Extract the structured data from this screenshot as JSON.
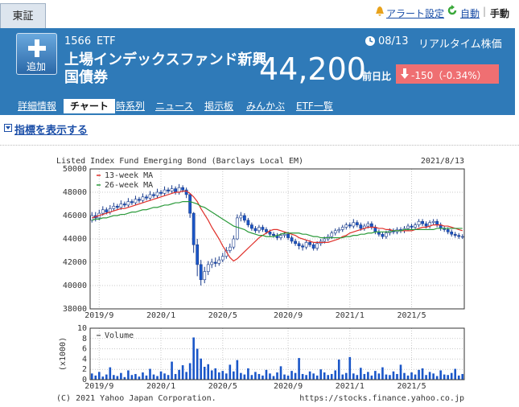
{
  "header": {
    "market": "東証",
    "alert": "アラート設定",
    "auto": "自動",
    "manual": "手動"
  },
  "quote": {
    "add": "追加",
    "code": "1566",
    "kind": "ETF",
    "date": "08/13",
    "realtime": "リアルタイム株価",
    "name": "上場インデックスファンド新興国債券",
    "price": "44,200",
    "change_label": "前日比",
    "change": "-150（-0.34%）"
  },
  "tabs": [
    "詳細情報",
    "チャート",
    "時系列",
    "ニュース",
    "掲示板",
    "みんかぶ",
    "ETF一覧"
  ],
  "indicator_link": "指標を表示する",
  "footer": {
    "copyright": "(C) 2021 Yahoo Japan Corporation.",
    "url": "https://stocks.finance.yahoo.co.jp"
  },
  "chart_data": [
    {
      "type": "candlestick",
      "title": "Listed Index Fund Emerging Bond (Barclays Local EM)",
      "date": "2021/8/13",
      "categories": [
        null,
        null,
        "2019/9",
        null,
        null,
        null,
        null,
        null,
        null,
        null,
        null,
        null,
        null,
        null,
        null,
        null,
        null,
        null,
        null,
        "2020/1",
        null,
        null,
        null,
        null,
        null,
        null,
        null,
        null,
        null,
        null,
        null,
        null,
        null,
        null,
        null,
        null,
        "2020/5",
        null,
        null,
        null,
        null,
        null,
        null,
        null,
        null,
        null,
        null,
        null,
        null,
        null,
        null,
        null,
        null,
        null,
        "2020/9",
        null,
        null,
        null,
        null,
        null,
        null,
        null,
        null,
        null,
        null,
        null,
        null,
        null,
        null,
        null,
        null,
        "2021/1",
        null,
        null,
        null,
        null,
        null,
        null,
        null,
        null,
        null,
        null,
        null,
        null,
        null,
        null,
        null,
        null,
        "2021/5",
        null,
        null,
        null,
        null,
        null,
        null,
        null,
        null,
        null,
        null,
        null,
        null,
        null,
        null
      ],
      "ohlc": [
        [
          45600,
          46300,
          45400,
          46000
        ],
        [
          46000,
          46300,
          45500,
          45800
        ],
        [
          45800,
          46500,
          45600,
          46200
        ],
        [
          46200,
          46800,
          46000,
          46500
        ],
        [
          46500,
          46700,
          46100,
          46300
        ],
        [
          46300,
          46900,
          46100,
          46600
        ],
        [
          46600,
          47100,
          46400,
          46800
        ],
        [
          46800,
          47000,
          46500,
          46700
        ],
        [
          46700,
          47300,
          46500,
          47000
        ],
        [
          47000,
          47200,
          46700,
          46900
        ],
        [
          46900,
          47500,
          46700,
          47200
        ],
        [
          47200,
          47400,
          46900,
          47100
        ],
        [
          47100,
          47700,
          46900,
          47400
        ],
        [
          47400,
          47600,
          47100,
          47300
        ],
        [
          47300,
          47900,
          47100,
          47600
        ],
        [
          47600,
          47800,
          47300,
          47500
        ],
        [
          47500,
          48100,
          47300,
          47800
        ],
        [
          47800,
          48000,
          47500,
          47700
        ],
        [
          47700,
          48300,
          47500,
          48000
        ],
        [
          48000,
          48200,
          47700,
          47900
        ],
        [
          47900,
          48500,
          47700,
          48200
        ],
        [
          48200,
          48400,
          47900,
          48100
        ],
        [
          48100,
          48600,
          47900,
          48300
        ],
        [
          48300,
          48500,
          47800,
          48000
        ],
        [
          48000,
          48700,
          47800,
          48400
        ],
        [
          48400,
          48600,
          48000,
          48200
        ],
        [
          48200,
          48400,
          47500,
          47800
        ],
        [
          47800,
          47900,
          45800,
          46200
        ],
        [
          46200,
          46300,
          42800,
          43500
        ],
        [
          43500,
          44000,
          40800,
          41800
        ],
        [
          41800,
          42200,
          40000,
          40500
        ],
        [
          40500,
          41600,
          40200,
          41200
        ],
        [
          41200,
          42100,
          40900,
          41800
        ],
        [
          41800,
          42300,
          41500,
          42000
        ],
        [
          42000,
          42400,
          41600,
          41900
        ],
        [
          41900,
          42500,
          41700,
          42200
        ],
        [
          42200,
          42800,
          42000,
          42500
        ],
        [
          42500,
          43300,
          42300,
          43000
        ],
        [
          43000,
          43600,
          42800,
          43300
        ],
        [
          43300,
          44300,
          43100,
          44000
        ],
        [
          44000,
          46100,
          43900,
          45800
        ],
        [
          45800,
          46300,
          45500,
          46000
        ],
        [
          46000,
          46200,
          45400,
          45600
        ],
        [
          45600,
          45800,
          45000,
          45200
        ],
        [
          45200,
          45400,
          44700,
          44900
        ],
        [
          44900,
          45100,
          44500,
          44700
        ],
        [
          44700,
          45200,
          44500,
          45000
        ],
        [
          45000,
          45200,
          44600,
          44800
        ],
        [
          44800,
          45000,
          44400,
          44600
        ],
        [
          44600,
          44800,
          44200,
          44400
        ],
        [
          44400,
          44600,
          44100,
          44300
        ],
        [
          44300,
          44500,
          43900,
          44100
        ],
        [
          44100,
          44500,
          43900,
          44300
        ],
        [
          44300,
          44600,
          44100,
          44400
        ],
        [
          44400,
          44600,
          43900,
          44100
        ],
        [
          44100,
          44300,
          43600,
          43800
        ],
        [
          43800,
          44000,
          43400,
          43600
        ],
        [
          43600,
          43800,
          43100,
          43400
        ],
        [
          43400,
          43600,
          43000,
          43300
        ],
        [
          43300,
          43900,
          43100,
          43700
        ],
        [
          43700,
          43900,
          43300,
          43500
        ],
        [
          43500,
          43700,
          43000,
          43200
        ],
        [
          43200,
          43800,
          43000,
          43600
        ],
        [
          43600,
          44000,
          43400,
          43800
        ],
        [
          43800,
          44200,
          43600,
          44000
        ],
        [
          44000,
          44400,
          43800,
          44200
        ],
        [
          44200,
          44700,
          44000,
          44500
        ],
        [
          44500,
          44900,
          44300,
          44700
        ],
        [
          44700,
          45000,
          44500,
          44800
        ],
        [
          44800,
          45200,
          44600,
          45000
        ],
        [
          45000,
          45400,
          44800,
          45200
        ],
        [
          45200,
          45400,
          44900,
          45100
        ],
        [
          45100,
          45700,
          44900,
          45400
        ],
        [
          45400,
          45600,
          45000,
          45200
        ],
        [
          45200,
          45400,
          44700,
          44900
        ],
        [
          44900,
          45300,
          44700,
          45100
        ],
        [
          45100,
          45500,
          44900,
          45300
        ],
        [
          45300,
          45500,
          44800,
          45000
        ],
        [
          45000,
          45200,
          44400,
          44600
        ],
        [
          44600,
          44800,
          44200,
          44400
        ],
        [
          44400,
          44600,
          44000,
          44200
        ],
        [
          44200,
          44700,
          44000,
          44500
        ],
        [
          44500,
          44900,
          44300,
          44700
        ],
        [
          44700,
          44900,
          44400,
          44600
        ],
        [
          44600,
          45000,
          44400,
          44800
        ],
        [
          44800,
          45000,
          44500,
          44700
        ],
        [
          44700,
          45100,
          44500,
          44900
        ],
        [
          44900,
          45300,
          44700,
          45100
        ],
        [
          45100,
          45300,
          44800,
          45000
        ],
        [
          45000,
          45400,
          44800,
          45200
        ],
        [
          45200,
          45700,
          45000,
          45500
        ],
        [
          45500,
          45700,
          45100,
          45300
        ],
        [
          45300,
          45500,
          44900,
          45100
        ],
        [
          45100,
          45600,
          44900,
          45400
        ],
        [
          45400,
          45700,
          45200,
          45500
        ],
        [
          45500,
          45700,
          45000,
          45200
        ],
        [
          45200,
          45400,
          44700,
          44900
        ],
        [
          44900,
          45100,
          44600,
          44800
        ],
        [
          44800,
          45000,
          44400,
          44600
        ],
        [
          44600,
          44800,
          44200,
          44400
        ],
        [
          44400,
          44600,
          44100,
          44300
        ],
        [
          44300,
          44500,
          44000,
          44200
        ],
        [
          44200,
          44400,
          44000,
          44200
        ]
      ],
      "up_color": "#ffffff",
      "down_color": "#1a56c8",
      "candle_stroke": "#1a3c8c",
      "lines": [
        {
          "name": "13-week MA",
          "color": "#e0302a",
          "values": [
            45800,
            45900,
            46000,
            46100,
            46200,
            46300,
            46400,
            46500,
            46600,
            46600,
            46700,
            46800,
            46900,
            47000,
            47100,
            47200,
            47300,
            47400,
            47500,
            47600,
            47700,
            47800,
            47900,
            48000,
            48000,
            48100,
            48100,
            47900,
            47600,
            47200,
            46600,
            46100,
            45600,
            45000,
            44500,
            44000,
            43400,
            42900,
            42400,
            42100,
            42300,
            42600,
            42900,
            43200,
            43500,
            43800,
            44100,
            44300,
            44500,
            44700,
            44800,
            44800,
            44700,
            44600,
            44500,
            44400,
            44300,
            44100,
            44000,
            43900,
            43800,
            43700,
            43700,
            43700,
            43700,
            43700,
            43800,
            43900,
            44000,
            44200,
            44300,
            44500,
            44600,
            44700,
            44800,
            44900,
            45000,
            45000,
            45000,
            44900,
            44900,
            44800,
            44800,
            44700,
            44700,
            44700,
            44700,
            44700,
            44700,
            44800,
            44900,
            45000,
            45000,
            45100,
            45200,
            45200,
            45200,
            45100,
            45100,
            45000,
            44900,
            44800,
            44700
          ]
        },
        {
          "name": "26-week MA",
          "color": "#2a9a3a",
          "values": [
            45600,
            45700,
            45700,
            45800,
            45800,
            45900,
            46000,
            46000,
            46100,
            46100,
            46200,
            46300,
            46300,
            46400,
            46500,
            46500,
            46600,
            46700,
            46700,
            46800,
            46900,
            46900,
            47000,
            47100,
            47100,
            47200,
            47200,
            47200,
            47100,
            47000,
            46800,
            46700,
            46500,
            46300,
            46100,
            45900,
            45700,
            45500,
            45300,
            45100,
            45000,
            44900,
            44800,
            44600,
            44500,
            44400,
            44300,
            44300,
            44200,
            44200,
            44200,
            44300,
            44400,
            44500,
            44500,
            44500,
            44500,
            44500,
            44400,
            44400,
            44300,
            44200,
            44200,
            44100,
            44100,
            44100,
            44100,
            44100,
            44100,
            44100,
            44200,
            44200,
            44300,
            44300,
            44400,
            44400,
            44500,
            44500,
            44600,
            44600,
            44600,
            44600,
            44600,
            44700,
            44700,
            44700,
            44800,
            44800,
            44800,
            44800,
            44800,
            44800,
            44800,
            44800,
            44800,
            44900,
            44900,
            44900,
            44900,
            44900,
            44900,
            44900,
            44900
          ]
        }
      ],
      "ylim": [
        38000,
        50000
      ],
      "yticks": [
        38000,
        40000,
        42000,
        44000,
        46000,
        48000,
        50000
      ],
      "grid": true
    },
    {
      "type": "bar",
      "ylabel": "(x1000)",
      "categories": [
        null,
        null,
        "2019/9",
        null,
        null,
        null,
        null,
        null,
        null,
        null,
        null,
        null,
        null,
        null,
        null,
        null,
        null,
        null,
        null,
        "2020/1",
        null,
        null,
        null,
        null,
        null,
        null,
        null,
        null,
        null,
        null,
        null,
        null,
        null,
        null,
        null,
        null,
        "2020/5",
        null,
        null,
        null,
        null,
        null,
        null,
        null,
        null,
        null,
        null,
        null,
        null,
        null,
        null,
        null,
        null,
        null,
        "2020/9",
        null,
        null,
        null,
        null,
        null,
        null,
        null,
        null,
        null,
        null,
        null,
        null,
        null,
        null,
        null,
        null,
        "2021/1",
        null,
        null,
        null,
        null,
        null,
        null,
        null,
        null,
        null,
        null,
        null,
        null,
        null,
        null,
        null,
        null,
        "2021/5",
        null,
        null,
        null,
        null,
        null,
        null,
        null,
        null,
        null,
        null,
        null,
        null,
        null,
        null
      ],
      "series": [
        {
          "name": "Volume",
          "color": "#1a56c8",
          "values": [
            1.2,
            0.8,
            1.5,
            0.6,
            1.0,
            2.4,
            0.9,
            0.7,
            1.3,
            0.5,
            1.8,
            0.9,
            1.1,
            0.6,
            1.4,
            0.8,
            2.1,
            1.0,
            0.7,
            1.6,
            1.2,
            0.9,
            3.5,
            1.1,
            1.9,
            2.8,
            1.5,
            3.2,
            8.2,
            6.0,
            4.1,
            2.5,
            3.0,
            1.8,
            2.2,
            1.4,
            1.7,
            1.2,
            2.9,
            1.6,
            3.8,
            1.3,
            1.0,
            2.2,
            0.9,
            1.5,
            1.1,
            0.8,
            1.9,
            1.2,
            0.7,
            1.4,
            2.6,
            1.0,
            0.8,
            1.7,
            1.3,
            4.2,
            1.1,
            0.9,
            1.6,
            1.2,
            0.8,
            2.0,
            1.4,
            0.9,
            1.1,
            1.8,
            3.9,
            1.0,
            1.3,
            4.4,
            1.2,
            0.9,
            2.3,
            1.1,
            1.5,
            0.8,
            1.7,
            1.2,
            2.4,
            1.0,
            0.9,
            1.6,
            1.1,
            2.9,
            1.3,
            0.8,
            1.4,
            1.0,
            1.9,
            2.2,
            0.9,
            1.5,
            1.2,
            0.7,
            1.8,
            1.0,
            0.9,
            1.3,
            2.1,
            0.8,
            1.1
          ]
        }
      ],
      "ylim": [
        0,
        10
      ],
      "yticks": [
        0,
        2,
        4,
        6,
        8,
        10
      ],
      "grid": true
    }
  ]
}
